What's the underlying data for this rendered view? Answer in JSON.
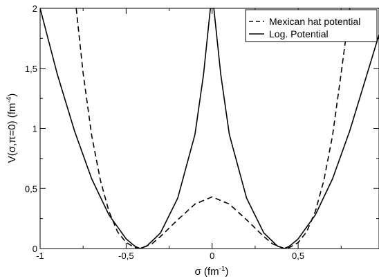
{
  "chart_data": {
    "type": "line",
    "title": "",
    "xlabel": "σ (fm⁻¹)",
    "ylabel": "V(σ,π=0) (fm⁻⁴)",
    "xlim": [
      -1,
      0.97
    ],
    "ylim": [
      0,
      2
    ],
    "x_ticks": [
      "-1",
      "-0,5",
      "0",
      "0,5"
    ],
    "x_tick_values": [
      -1,
      -0.5,
      0,
      0.5
    ],
    "y_ticks": [
      "0",
      "0,5",
      "1",
      "1,5",
      "2"
    ],
    "y_tick_values": [
      0,
      0.5,
      1,
      1.5,
      2
    ],
    "legend_position": "top-right",
    "series": [
      {
        "name": "Mexican hat potential",
        "style": "dashed",
        "x": [
          -0.79,
          -0.75,
          -0.7,
          -0.65,
          -0.6,
          -0.55,
          -0.5,
          -0.45,
          -0.42,
          -0.35,
          -0.3,
          -0.2,
          -0.1,
          0,
          0.1,
          0.2,
          0.3,
          0.35,
          0.42,
          0.45,
          0.5,
          0.55,
          0.6,
          0.65,
          0.7,
          0.75,
          0.8
        ],
        "y": [
          2.0,
          1.46,
          0.94,
          0.57,
          0.31,
          0.14,
          0.05,
          0.009,
          0.0,
          0.04,
          0.1,
          0.24,
          0.37,
          0.43,
          0.37,
          0.24,
          0.1,
          0.04,
          0.0,
          0.009,
          0.05,
          0.14,
          0.31,
          0.57,
          0.94,
          1.46,
          2.0
        ]
      },
      {
        "name": "Log. Potential",
        "style": "solid",
        "x": [
          -1.0,
          -0.9,
          -0.8,
          -0.7,
          -0.6,
          -0.5,
          -0.45,
          -0.42,
          -0.38,
          -0.3,
          -0.2,
          -0.1,
          -0.05,
          -0.01,
          0.01,
          0.05,
          0.1,
          0.2,
          0.3,
          0.38,
          0.42,
          0.45,
          0.5,
          0.6,
          0.7,
          0.8,
          0.9,
          0.97
        ],
        "y": [
          2.0,
          1.45,
          0.98,
          0.58,
          0.28,
          0.08,
          0.02,
          0.0,
          0.02,
          0.13,
          0.42,
          0.95,
          1.45,
          2.0,
          2.0,
          1.45,
          0.95,
          0.42,
          0.13,
          0.02,
          0.0,
          0.02,
          0.08,
          0.28,
          0.58,
          0.98,
          1.45,
          1.78
        ]
      }
    ]
  }
}
